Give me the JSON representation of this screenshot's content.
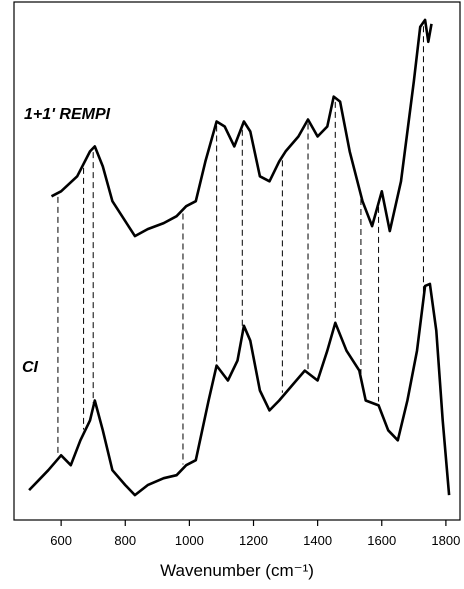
{
  "chart_data": {
    "type": "line",
    "x_label": "Wavenumber (cm⁻¹)",
    "xlim": [
      453,
      1844
    ],
    "ylim": [
      0,
      520
    ],
    "xticks": [
      600,
      800,
      1000,
      1200,
      1400,
      1600,
      1800
    ],
    "series": [
      {
        "name": "1+1' REMPI",
        "color": "#000000",
        "x": [
          570,
          600,
          650,
          690,
          705,
          730,
          760,
          800,
          830,
          870,
          920,
          960,
          990,
          1020,
          1050,
          1085,
          1110,
          1140,
          1170,
          1190,
          1220,
          1250,
          1280,
          1300,
          1340,
          1370,
          1400,
          1430,
          1450,
          1470,
          1500,
          1540,
          1570,
          1600,
          1625,
          1660,
          1700,
          1720,
          1735,
          1745,
          1755
        ],
        "values": [
          325,
          330,
          345,
          370,
          375,
          355,
          320,
          300,
          285,
          292,
          298,
          305,
          315,
          320,
          360,
          400,
          395,
          375,
          400,
          390,
          345,
          340,
          360,
          370,
          385,
          402,
          385,
          395,
          425,
          420,
          370,
          320,
          295,
          330,
          290,
          340,
          440,
          495,
          502,
          480,
          498
        ]
      },
      {
        "name": "CI",
        "color": "#000000",
        "x": [
          500,
          530,
          560,
          600,
          630,
          660,
          690,
          705,
          730,
          760,
          800,
          830,
          870,
          920,
          960,
          990,
          1020,
          1060,
          1085,
          1120,
          1150,
          1170,
          1190,
          1220,
          1250,
          1280,
          1320,
          1360,
          1400,
          1430,
          1455,
          1490,
          1530,
          1550,
          1590,
          1620,
          1650,
          1680,
          1710,
          1735,
          1750,
          1770,
          1790,
          1810
        ],
        "values": [
          30,
          40,
          50,
          65,
          55,
          80,
          100,
          120,
          90,
          50,
          35,
          25,
          35,
          42,
          45,
          55,
          60,
          120,
          155,
          140,
          160,
          195,
          180,
          130,
          110,
          120,
          135,
          150,
          140,
          170,
          198,
          170,
          150,
          120,
          115,
          90,
          80,
          120,
          170,
          235,
          237,
          190,
          100,
          25
        ]
      }
    ],
    "peak_lines": [
      590,
      670,
      700,
      980,
      1085,
      1165,
      1290,
      1370,
      1455,
      1535,
      1590,
      1730
    ]
  }
}
